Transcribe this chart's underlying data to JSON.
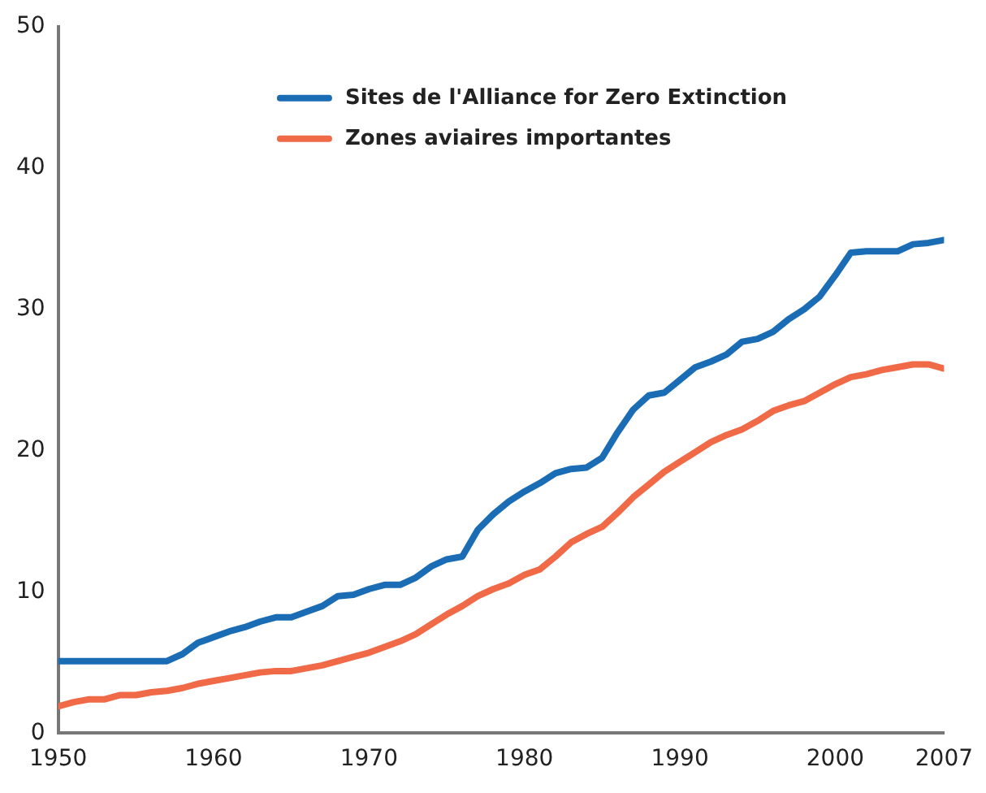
{
  "chart_data": {
    "type": "line",
    "x": [
      1950,
      1951,
      1952,
      1953,
      1954,
      1955,
      1956,
      1957,
      1958,
      1959,
      1960,
      1961,
      1962,
      1963,
      1964,
      1965,
      1966,
      1967,
      1968,
      1969,
      1970,
      1971,
      1972,
      1973,
      1974,
      1975,
      1976,
      1977,
      1978,
      1979,
      1980,
      1981,
      1982,
      1983,
      1984,
      1985,
      1986,
      1987,
      1988,
      1989,
      1990,
      1991,
      1992,
      1993,
      1994,
      1995,
      1996,
      1997,
      1998,
      1999,
      2000,
      2001,
      2002,
      2003,
      2004,
      2005,
      2006,
      2007
    ],
    "series": [
      {
        "name": "Sites de l'Alliance for Zero Extinction",
        "color": "#1a6db5",
        "values": [
          5.1,
          5.1,
          5.1,
          5.1,
          5.1,
          5.1,
          5.1,
          5.1,
          5.6,
          6.4,
          6.8,
          7.2,
          7.5,
          7.9,
          8.2,
          8.2,
          8.6,
          9.0,
          9.7,
          9.8,
          10.2,
          10.5,
          10.5,
          11.0,
          11.8,
          12.3,
          12.5,
          14.4,
          15.5,
          16.4,
          17.1,
          17.7,
          18.4,
          18.7,
          18.8,
          19.5,
          21.3,
          22.9,
          23.9,
          24.1,
          25.0,
          25.9,
          26.3,
          26.8,
          27.7,
          27.9,
          28.4,
          29.3,
          30.0,
          30.9,
          32.4,
          34.0,
          34.1,
          34.1,
          34.1,
          34.6,
          34.7,
          34.9
        ]
      },
      {
        "name": "Zones aviaires importantes",
        "color": "#f06a48",
        "values": [
          1.9,
          2.2,
          2.4,
          2.4,
          2.7,
          2.7,
          2.9,
          3.0,
          3.2,
          3.5,
          3.7,
          3.9,
          4.1,
          4.3,
          4.4,
          4.4,
          4.6,
          4.8,
          5.1,
          5.4,
          5.7,
          6.1,
          6.5,
          7.0,
          7.7,
          8.4,
          9.0,
          9.7,
          10.2,
          10.6,
          11.2,
          11.6,
          12.5,
          13.5,
          14.1,
          14.6,
          15.6,
          16.7,
          17.6,
          18.5,
          19.2,
          19.9,
          20.6,
          21.1,
          21.5,
          22.1,
          22.8,
          23.2,
          23.5,
          24.1,
          24.7,
          25.2,
          25.4,
          25.7,
          25.9,
          26.1,
          26.1,
          25.8
        ]
      }
    ],
    "xlim": [
      1950,
      2007
    ],
    "xticks": [
      1950,
      1960,
      1970,
      1980,
      1990,
      2000,
      2007
    ],
    "ylim": [
      0,
      50
    ],
    "yticks": [
      0,
      10,
      20,
      30,
      40,
      50
    ],
    "grid": false,
    "legend": "top",
    "marker": "none",
    "line_style": "solid"
  }
}
